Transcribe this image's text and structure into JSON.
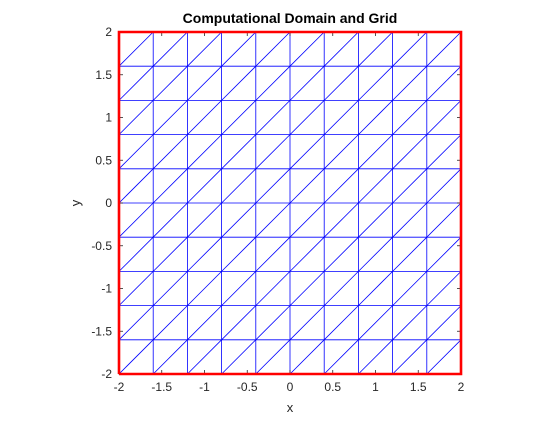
{
  "chart_data": {
    "type": "mesh",
    "title": "Computational Domain and Grid",
    "xlabel": "x",
    "ylabel": "y",
    "xlim": [
      -2,
      2
    ],
    "ylim": [
      -2,
      2
    ],
    "xticks": [
      -2,
      -1.5,
      -1,
      -0.5,
      0,
      0.5,
      1,
      1.5,
      2
    ],
    "yticks": [
      -2,
      -1.5,
      -1,
      -0.5,
      0,
      0.5,
      1,
      1.5,
      2
    ],
    "xtick_labels": [
      "-2",
      "-1.5",
      "-1",
      "-0.5",
      "0",
      "0.5",
      "1",
      "1.5",
      "2"
    ],
    "ytick_labels": [
      "-2",
      "-1.5",
      "-1",
      "-0.5",
      "0",
      "0.5",
      "1",
      "1.5",
      "2"
    ],
    "grid_nodes_per_side": 11,
    "grid_spacing": 0.4,
    "diagonal_direction": "bottom-left to top-right",
    "grid_color": "#0000ff",
    "boundary": {
      "x": [
        -2,
        2,
        2,
        -2,
        -2
      ],
      "y": [
        -2,
        -2,
        2,
        2,
        -2
      ],
      "color": "#ff0000"
    }
  }
}
